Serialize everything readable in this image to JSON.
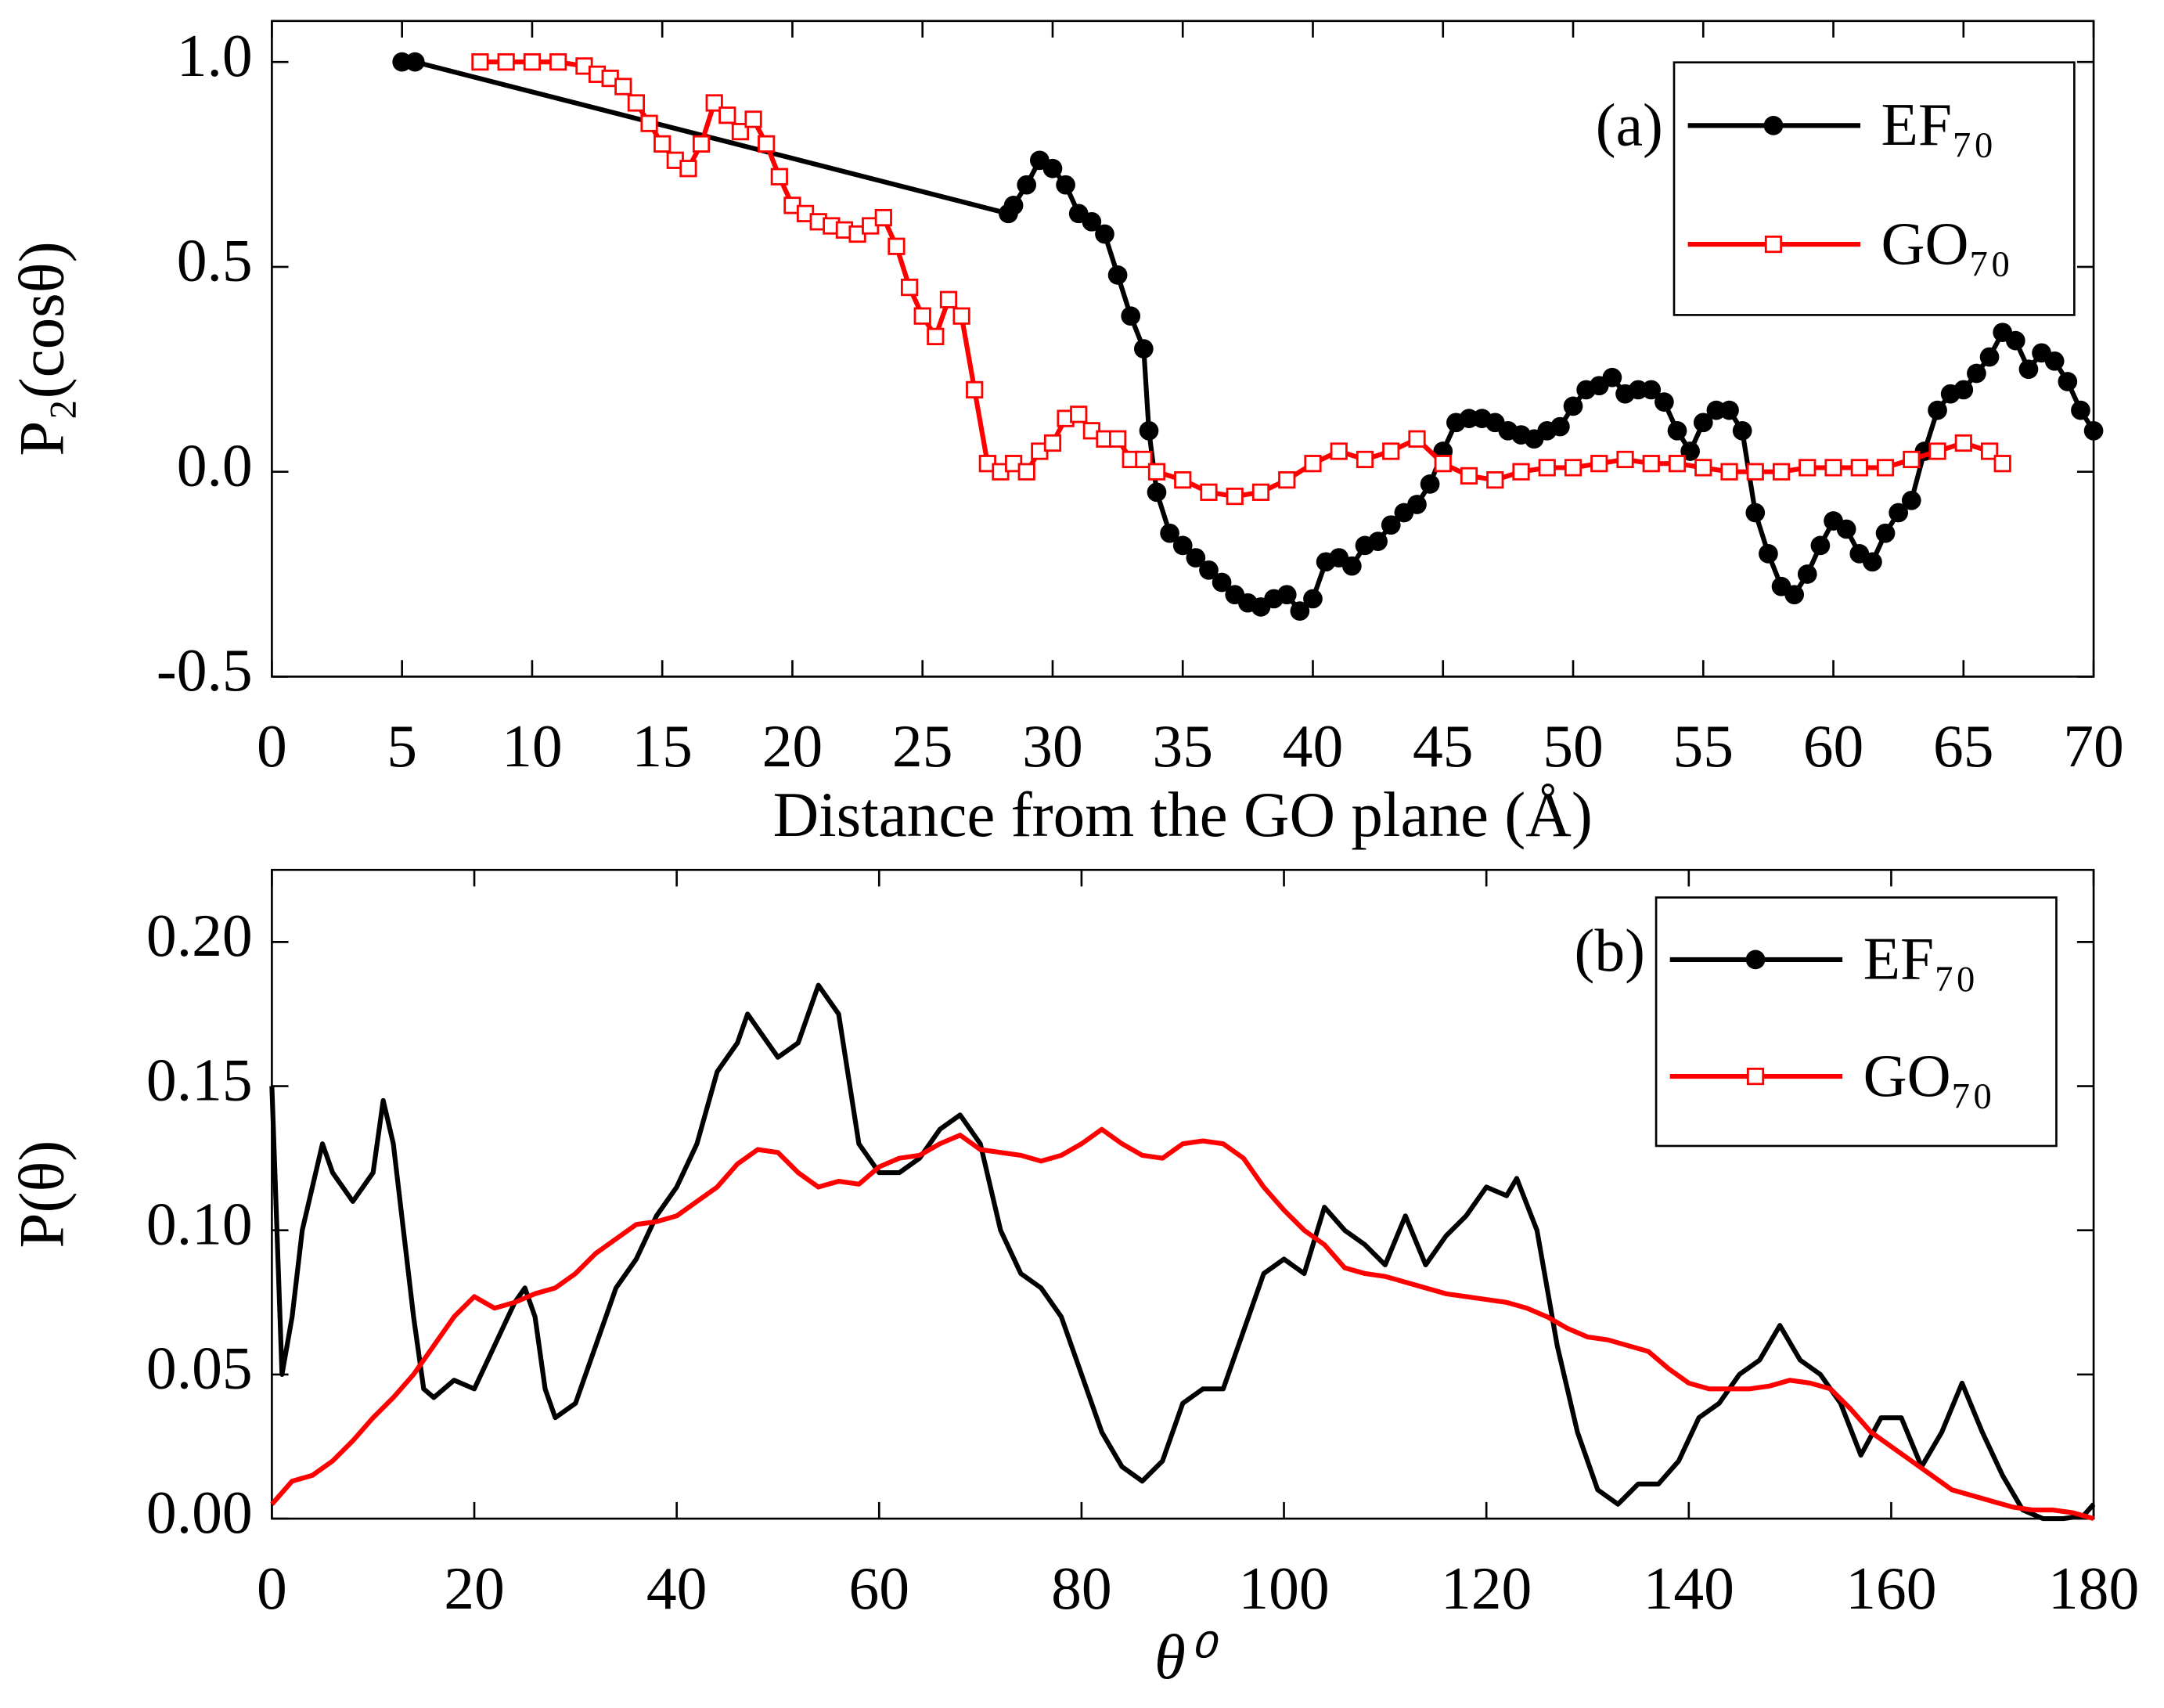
{
  "chart_data": [
    {
      "type": "line",
      "annotation": "(a)",
      "x_label": "Distance from the GO plane (Å)",
      "y_label": "P₂(cosθ)",
      "xlim": [
        0,
        70
      ],
      "ylim": [
        -0.5,
        1.1
      ],
      "xticks": [
        0,
        5,
        10,
        15,
        20,
        25,
        30,
        35,
        40,
        45,
        50,
        55,
        60,
        65,
        70
      ],
      "yticks": [
        -0.5,
        {
          "value": 0,
          "label": "0.0"
        },
        0.5,
        {
          "value": 1,
          "label": "1.0"
        }
      ],
      "markers": true,
      "legend": "upper right",
      "series": [
        {
          "name": "EF₇₀",
          "color": "#000000",
          "marker": "circle",
          "x": [
            5.0,
            5.5,
            28.3,
            28.5,
            29,
            29.5,
            30,
            30.5,
            31,
            31.5,
            32,
            32.5,
            33,
            33.5,
            33.7,
            34,
            34.5,
            35,
            35.5,
            36,
            36.5,
            37,
            37.5,
            38,
            38.5,
            39,
            39.5,
            40,
            40.5,
            41,
            41.5,
            42,
            42.5,
            43,
            43.5,
            44,
            44.5,
            45,
            45.5,
            46,
            46.5,
            47,
            47.5,
            48,
            48.5,
            49,
            49.5,
            50,
            50.5,
            51,
            51.5,
            52,
            52.5,
            53,
            53.5,
            54,
            54.5,
            55,
            55.5,
            56,
            56.5,
            57,
            57.5,
            58,
            58.5,
            59,
            59.5,
            60,
            60.5,
            61,
            61.5,
            62,
            62.5,
            63,
            63.5,
            64,
            64.5,
            65,
            65.5,
            66,
            66.5,
            67,
            67.5,
            68,
            68.5,
            69,
            69.5,
            70
          ],
          "values": [
            1.0,
            1.0,
            0.63,
            0.65,
            0.7,
            0.76,
            0.74,
            0.7,
            0.63,
            0.61,
            0.58,
            0.48,
            0.38,
            0.3,
            0.1,
            -0.05,
            -0.15,
            -0.18,
            -0.21,
            -0.24,
            -0.27,
            -0.3,
            -0.32,
            -0.33,
            -0.31,
            -0.3,
            -0.34,
            -0.31,
            -0.22,
            -0.21,
            -0.23,
            -0.18,
            -0.17,
            -0.13,
            -0.1,
            -0.08,
            -0.03,
            0.05,
            0.12,
            0.13,
            0.13,
            0.12,
            0.1,
            0.09,
            0.08,
            0.1,
            0.11,
            0.16,
            0.2,
            0.21,
            0.23,
            0.19,
            0.2,
            0.2,
            0.17,
            0.1,
            0.05,
            0.12,
            0.15,
            0.15,
            0.1,
            -0.1,
            -0.2,
            -0.28,
            -0.3,
            -0.25,
            -0.18,
            -0.12,
            -0.14,
            -0.2,
            -0.22,
            -0.15,
            -0.1,
            -0.07,
            0.05,
            0.15,
            0.19,
            0.2,
            0.24,
            0.28,
            0.34,
            0.32,
            0.25,
            0.29,
            0.27,
            0.22,
            0.15,
            0.1
          ]
        },
        {
          "name": "GO₇₀",
          "color": "#ff0000",
          "marker": "square",
          "x": [
            8,
            9,
            10,
            11,
            12,
            12.5,
            13,
            13.5,
            14,
            14.5,
            15,
            15.5,
            16,
            16.5,
            17,
            17.5,
            18,
            18.5,
            19,
            19.5,
            20,
            20.5,
            21,
            21.5,
            22,
            22.5,
            23,
            23.5,
            24,
            24.5,
            25,
            25.5,
            26,
            26.5,
            27,
            27.5,
            28,
            28.5,
            29,
            29.5,
            30,
            30.5,
            31,
            31.5,
            32,
            32.5,
            33,
            33.5,
            34,
            35,
            36,
            37,
            38,
            39,
            40,
            41,
            42,
            43,
            44,
            45,
            46,
            47,
            48,
            49,
            50,
            51,
            52,
            53,
            54,
            55,
            56,
            57,
            58,
            59,
            60,
            61,
            62,
            63,
            64,
            65,
            66,
            66.5
          ],
          "values": [
            1.0,
            1.0,
            1.0,
            1.0,
            0.99,
            0.97,
            0.96,
            0.94,
            0.9,
            0.85,
            0.8,
            0.76,
            0.74,
            0.8,
            0.9,
            0.87,
            0.83,
            0.86,
            0.8,
            0.72,
            0.65,
            0.63,
            0.61,
            0.6,
            0.59,
            0.58,
            0.6,
            0.62,
            0.55,
            0.45,
            0.38,
            0.33,
            0.42,
            0.38,
            0.2,
            0.02,
            0.0,
            0.02,
            0.0,
            0.05,
            0.07,
            0.13,
            0.14,
            0.1,
            0.08,
            0.08,
            0.03,
            0.03,
            0.0,
            -0.02,
            -0.05,
            -0.06,
            -0.05,
            -0.02,
            0.02,
            0.05,
            0.03,
            0.05,
            0.08,
            0.02,
            -0.01,
            -0.02,
            0.0,
            0.01,
            0.01,
            0.02,
            0.03,
            0.02,
            0.02,
            0.01,
            0.0,
            0.0,
            0.0,
            0.01,
            0.01,
            0.01,
            0.01,
            0.03,
            0.05,
            0.07,
            0.05,
            0.02
          ]
        }
      ]
    },
    {
      "type": "line",
      "annotation": "(b)",
      "x_label": "θ⁰",
      "y_label": "P(θ)",
      "xlim": [
        0,
        180
      ],
      "ylim": [
        0,
        0.225
      ],
      "xticks": [
        0,
        20,
        40,
        60,
        80,
        100,
        120,
        140,
        160,
        180
      ],
      "yticks": [
        {
          "value": 0,
          "label": "0.00"
        },
        {
          "value": 0.05,
          "label": "0.05"
        },
        {
          "value": 0.1,
          "label": "0.10"
        },
        {
          "value": 0.15,
          "label": "0.15"
        },
        {
          "value": 0.2,
          "label": "0.20"
        }
      ],
      "markers": false,
      "legend": "upper right",
      "series": [
        {
          "name": "EF₇₀",
          "color": "#000000",
          "marker": "circle",
          "x": [
            0,
            1,
            2,
            3,
            5,
            6,
            8,
            10,
            11,
            12,
            14,
            15,
            16,
            18,
            20,
            22,
            24,
            25,
            26,
            27,
            28,
            30,
            32,
            34,
            36,
            38,
            40,
            42,
            44,
            46,
            47,
            48,
            50,
            52,
            54,
            56,
            58,
            60,
            62,
            64,
            66,
            68,
            70,
            72,
            74,
            76,
            78,
            80,
            82,
            84,
            86,
            88,
            90,
            92,
            94,
            96,
            98,
            100,
            102,
            104,
            106,
            108,
            110,
            112,
            114,
            116,
            118,
            120,
            122,
            123,
            125,
            127,
            129,
            131,
            133,
            135,
            137,
            139,
            141,
            143,
            145,
            147,
            149,
            151,
            153,
            155,
            157,
            159,
            161,
            163,
            165,
            167,
            169,
            171,
            173,
            175,
            177,
            179,
            180
          ],
          "values": [
            0.15,
            0.05,
            0.07,
            0.1,
            0.13,
            0.12,
            0.11,
            0.12,
            0.145,
            0.13,
            0.07,
            0.045,
            0.042,
            0.048,
            0.045,
            0.06,
            0.075,
            0.08,
            0.07,
            0.045,
            0.035,
            0.04,
            0.06,
            0.08,
            0.09,
            0.105,
            0.115,
            0.13,
            0.155,
            0.165,
            0.175,
            0.17,
            0.16,
            0.165,
            0.185,
            0.175,
            0.13,
            0.12,
            0.12,
            0.125,
            0.135,
            0.14,
            0.13,
            0.1,
            0.085,
            0.08,
            0.07,
            0.05,
            0.03,
            0.018,
            0.013,
            0.02,
            0.04,
            0.045,
            0.045,
            0.065,
            0.085,
            0.09,
            0.085,
            0.108,
            0.1,
            0.095,
            0.088,
            0.105,
            0.088,
            0.098,
            0.105,
            0.115,
            0.112,
            0.118,
            0.1,
            0.06,
            0.03,
            0.01,
            0.005,
            0.012,
            0.012,
            0.02,
            0.035,
            0.04,
            0.05,
            0.055,
            0.067,
            0.055,
            0.05,
            0.04,
            0.022,
            0.035,
            0.035,
            0.018,
            0.03,
            0.047,
            0.03,
            0.015,
            0.003,
            0.0,
            0.0,
            0.001,
            0.005
          ]
        },
        {
          "name": "GO₇₀",
          "color": "#ff0000",
          "marker": "square",
          "x": [
            0,
            2,
            4,
            6,
            8,
            10,
            12,
            14,
            16,
            18,
            20,
            22,
            24,
            26,
            28,
            30,
            32,
            34,
            36,
            38,
            40,
            42,
            44,
            46,
            48,
            50,
            52,
            54,
            56,
            58,
            60,
            62,
            64,
            66,
            68,
            70,
            72,
            74,
            76,
            78,
            80,
            82,
            84,
            86,
            88,
            90,
            92,
            94,
            96,
            98,
            100,
            102,
            104,
            106,
            108,
            110,
            112,
            114,
            116,
            118,
            120,
            122,
            124,
            126,
            128,
            130,
            132,
            134,
            136,
            138,
            140,
            142,
            144,
            146,
            148,
            150,
            152,
            154,
            156,
            158,
            160,
            162,
            164,
            166,
            168,
            170,
            172,
            174,
            176,
            178,
            180
          ],
          "values": [
            0.005,
            0.013,
            0.015,
            0.02,
            0.027,
            0.035,
            0.042,
            0.05,
            0.06,
            0.07,
            0.077,
            0.073,
            0.075,
            0.078,
            0.08,
            0.085,
            0.092,
            0.097,
            0.102,
            0.103,
            0.105,
            0.11,
            0.115,
            0.123,
            0.128,
            0.127,
            0.12,
            0.115,
            0.117,
            0.116,
            0.122,
            0.125,
            0.126,
            0.13,
            0.133,
            0.128,
            0.127,
            0.126,
            0.124,
            0.126,
            0.13,
            0.135,
            0.13,
            0.126,
            0.125,
            0.13,
            0.131,
            0.13,
            0.125,
            0.115,
            0.107,
            0.1,
            0.095,
            0.087,
            0.085,
            0.084,
            0.082,
            0.08,
            0.078,
            0.077,
            0.076,
            0.075,
            0.073,
            0.07,
            0.066,
            0.063,
            0.062,
            0.06,
            0.058,
            0.052,
            0.047,
            0.045,
            0.045,
            0.045,
            0.046,
            0.048,
            0.047,
            0.045,
            0.038,
            0.03,
            0.025,
            0.02,
            0.015,
            0.01,
            0.008,
            0.006,
            0.004,
            0.003,
            0.003,
            0.002,
            0.0
          ]
        }
      ]
    }
  ]
}
